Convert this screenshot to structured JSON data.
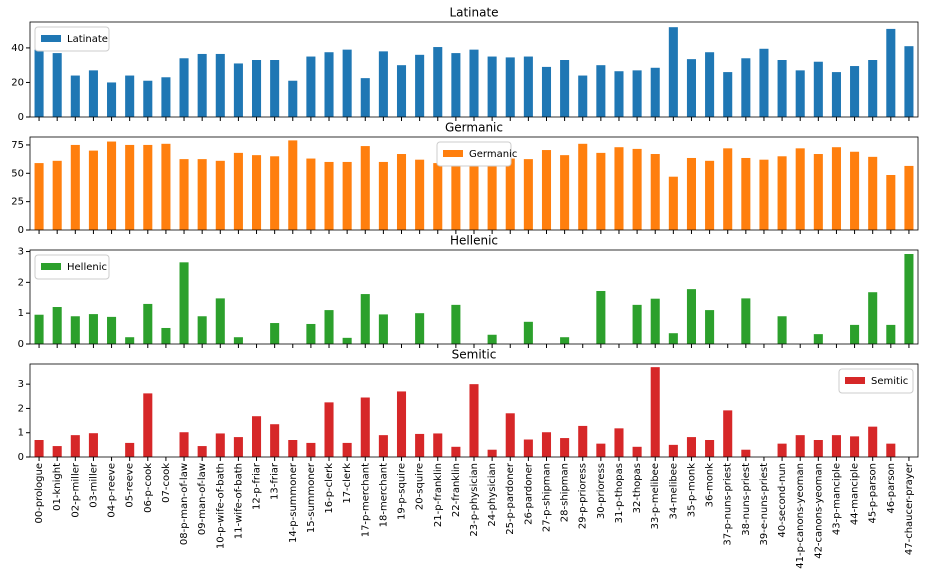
{
  "chart_data": [
    {
      "type": "bar",
      "title": "Latinate",
      "legend": "upper left",
      "ylim": [
        0,
        55
      ],
      "yticks": [
        0,
        20,
        40
      ],
      "series": [
        {
          "name": "Latinate",
          "color": "#1f77b4",
          "values": [
            39,
            37,
            24,
            27,
            20,
            24,
            21,
            23,
            34,
            36.5,
            36.5,
            31,
            33,
            33,
            21,
            35,
            37.5,
            39,
            22.5,
            38,
            30,
            36,
            40.5,
            37,
            39,
            35,
            34.5,
            35,
            29,
            33,
            24,
            30,
            26.5,
            27,
            28.5,
            52,
            33.5,
            37.5,
            26,
            34,
            39.5,
            33,
            27,
            32,
            26,
            29.5,
            33,
            51,
            41
          ]
        }
      ]
    },
    {
      "type": "bar",
      "title": "Germanic",
      "legend": "upper center",
      "ylim": [
        0,
        82
      ],
      "yticks": [
        0,
        25,
        50,
        75
      ],
      "series": [
        {
          "name": "Germanic",
          "color": "#ff7f0e",
          "values": [
            59,
            61,
            75,
            70,
            78,
            75,
            75,
            76,
            62.5,
            62.5,
            61,
            68,
            66,
            65,
            79,
            63,
            60,
            60,
            74,
            60,
            67,
            62,
            59,
            61.5,
            59,
            62.5,
            63,
            62.5,
            70.5,
            66,
            76,
            68,
            73,
            71.5,
            67,
            47,
            63.5,
            61,
            72,
            63.5,
            62,
            65,
            72,
            67,
            73,
            69,
            64.5,
            48.5,
            56.5
          ]
        }
      ]
    },
    {
      "type": "bar",
      "title": "Hellenic",
      "legend": "upper left",
      "ylim": [
        0,
        3.05
      ],
      "yticks": [
        0,
        1,
        2,
        3
      ],
      "series": [
        {
          "name": "Hellenic",
          "color": "#2ca02c",
          "values": [
            0.95,
            1.2,
            0.9,
            0.97,
            0.88,
            0.22,
            1.3,
            0.52,
            2.65,
            0.9,
            1.48,
            0.22,
            0,
            0.68,
            0,
            0.65,
            1.1,
            0.2,
            1.62,
            0.96,
            0,
            1.0,
            0,
            1.27,
            0,
            0.3,
            0,
            0.72,
            0,
            0.22,
            0,
            1.72,
            0,
            1.27,
            1.47,
            0.35,
            1.78,
            1.1,
            0,
            1.48,
            0,
            0.9,
            0,
            0.32,
            0,
            0.62,
            1.68,
            0.62,
            2.92
          ]
        }
      ]
    },
    {
      "type": "bar",
      "title": "Semitic",
      "legend": "upper right",
      "ylim": [
        0,
        3.83
      ],
      "yticks": [
        0,
        1,
        2,
        3
      ],
      "categories": [
        "00-prologue",
        "01-knight",
        "02-p-miller",
        "03-miller",
        "04-p-reeve",
        "05-reeve",
        "06-p-cook",
        "07-cook",
        "08-p-man-of-law",
        "09-man-of-law",
        "10-p-wife-of-bath",
        "11-wife-of-bath",
        "12-p-friar",
        "13-friar",
        "14-p-summoner",
        "15-summoner",
        "16-p-clerk",
        "17-clerk",
        "17-p-merchant",
        "18-merchant",
        "19-p-squire",
        "20-squire",
        "21-p-franklin",
        "22-franklin",
        "23-p-physician",
        "24-physician",
        "25-p-pardoner",
        "26-pardoner",
        "27-p-shipman",
        "28-shipman",
        "29-p-prioress",
        "30-prioress",
        "31-p-thopas",
        "32-thopas",
        "33-p-melibee",
        "34-melibee",
        "35-p-monk",
        "36-monk",
        "37-p-nuns-priest",
        "38-nuns-priest",
        "39-e-nuns-priest",
        "40-second-nun",
        "41-p-canons-yeoman",
        "42-canons-yeoman",
        "43-p-manciple",
        "44-manciple",
        "45-p-parson",
        "46-parson",
        "47-chaucer-prayer"
      ],
      "series": [
        {
          "name": "Semitic",
          "color": "#d62728",
          "values": [
            0.7,
            0.45,
            0.9,
            0.98,
            0,
            0.58,
            2.62,
            0,
            1.02,
            0.45,
            0.97,
            0.82,
            1.68,
            1.35,
            0.7,
            0.58,
            2.25,
            0.58,
            2.45,
            0.9,
            2.7,
            0.95,
            0.97,
            0.42,
            3.0,
            0.3,
            1.8,
            0.72,
            1.02,
            0.78,
            1.28,
            0.55,
            1.18,
            0.42,
            3.7,
            0.5,
            0.82,
            0.7,
            1.92,
            0.3,
            0,
            0.55,
            0.9,
            0.7,
            0.9,
            0.85,
            1.25,
            0.55,
            0
          ]
        }
      ]
    }
  ]
}
